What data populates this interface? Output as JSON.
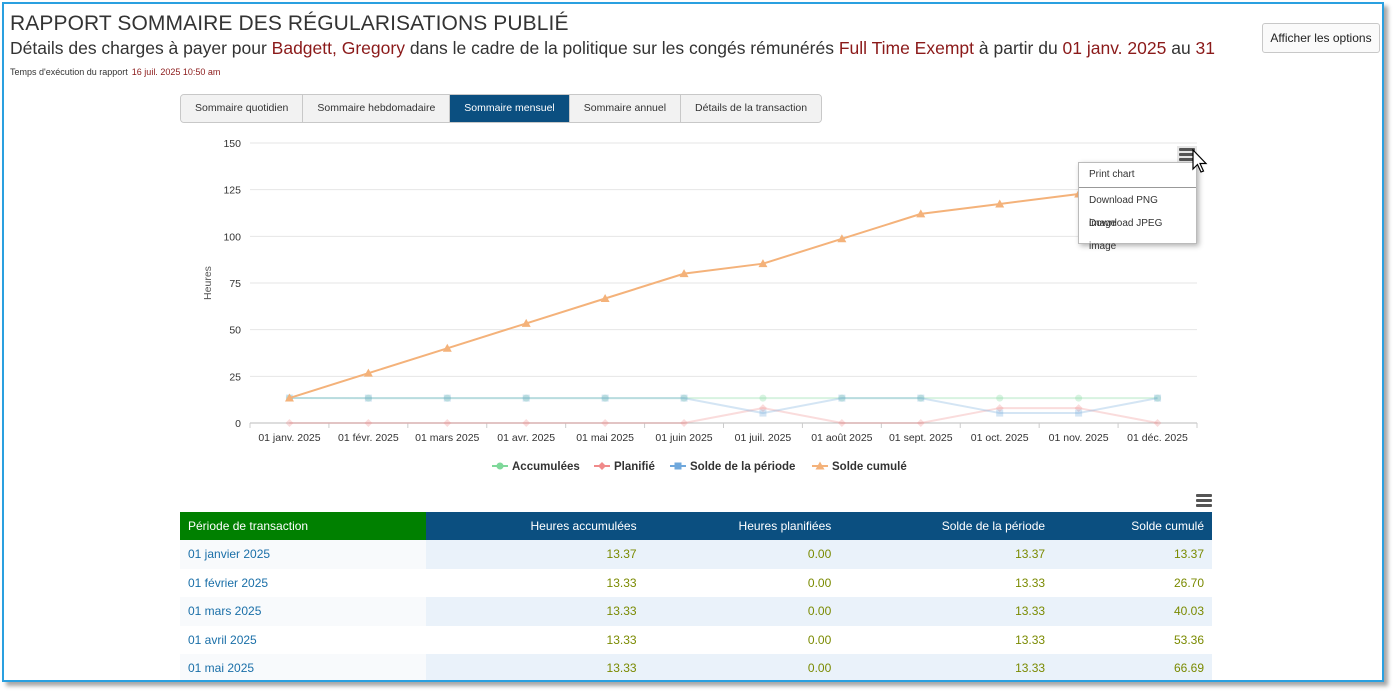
{
  "header": {
    "title": "RAPPORT SOMMAIRE DES RÉGULARISATIONS PUBLIÉ",
    "subtitle_prefix": "Détails des charges à payer pour ",
    "employee": "Badgett, Gregory",
    "subtitle_mid": " dans le cadre de la politique sur les congés rémunérés ",
    "policy": "Full Time Exempt",
    "subtitle_from": " à partir du ",
    "date_from": "01 janv. 2025",
    "subtitle_to": " au ",
    "date_to": "31",
    "runtime_label": "Temps d'exécution du rapport",
    "runtime_value": "16 juil. 2025 10:50 am",
    "options_button": "Afficher les options"
  },
  "tabs": [
    {
      "label": "Sommaire quotidien",
      "active": false
    },
    {
      "label": "Sommaire hebdomadaire",
      "active": false
    },
    {
      "label": "Sommaire mensuel",
      "active": true
    },
    {
      "label": "Sommaire annuel",
      "active": false
    },
    {
      "label": "Détails de la transaction",
      "active": false
    }
  ],
  "chart_menu": {
    "print": "Print chart",
    "png": "Download PNG image",
    "jpeg": "Download JPEG image"
  },
  "chart_data": {
    "type": "line",
    "title": "",
    "xlabel": "",
    "ylabel": "Heures",
    "ylim": [
      0,
      150
    ],
    "yticks": [
      0,
      25,
      50,
      75,
      100,
      125,
      150
    ],
    "grid": true,
    "legend_position": "bottom",
    "categories": [
      "01 janv. 2025",
      "01 févr. 2025",
      "01 mars 2025",
      "01 avr. 2025",
      "01 mai 2025",
      "01 juin 2025",
      "01 juil. 2025",
      "01 août 2025",
      "01 sept. 2025",
      "01 oct. 2025",
      "01 nov. 2025",
      "01 déc. 2025"
    ],
    "series": [
      {
        "name": "Accumulées",
        "color": "#7fd89a",
        "marker": "circle",
        "faded": true,
        "values": [
          13.37,
          13.33,
          13.33,
          13.33,
          13.33,
          13.33,
          13.33,
          13.33,
          13.33,
          13.33,
          13.33,
          13.33
        ]
      },
      {
        "name": "Planifié",
        "color": "#f08a8a",
        "marker": "diamond",
        "faded": true,
        "values": [
          0,
          0,
          0,
          0,
          0,
          0,
          8,
          0,
          0,
          8,
          8,
          0
        ]
      },
      {
        "name": "Solde de la période",
        "color": "#6fa8dc",
        "marker": "square",
        "faded": true,
        "values": [
          13.37,
          13.33,
          13.33,
          13.33,
          13.33,
          13.33,
          5.33,
          13.33,
          13.33,
          5.33,
          5.33,
          13.33
        ]
      },
      {
        "name": "Solde cumulé",
        "color": "#f4b27a",
        "marker": "triangle",
        "faded": false,
        "values": [
          13.37,
          26.7,
          40.03,
          53.36,
          66.69,
          80.02,
          85.35,
          98.68,
          112.01,
          117.34,
          122.67,
          136.0
        ]
      }
    ]
  },
  "table": {
    "headers": [
      "Période de transaction",
      "Heures accumulées",
      "Heures planifiées",
      "Solde de la période",
      "Solde cumulé"
    ],
    "rows": [
      [
        "01 janvier 2025",
        "13.37",
        "0.00",
        "13.37",
        "13.37"
      ],
      [
        "01 février 2025",
        "13.33",
        "0.00",
        "13.33",
        "26.70"
      ],
      [
        "01 mars 2025",
        "13.33",
        "0.00",
        "13.33",
        "40.03"
      ],
      [
        "01 avril 2025",
        "13.33",
        "0.00",
        "13.33",
        "53.36"
      ],
      [
        "01 mai 2025",
        "13.33",
        "0.00",
        "13.33",
        "66.69"
      ]
    ]
  }
}
